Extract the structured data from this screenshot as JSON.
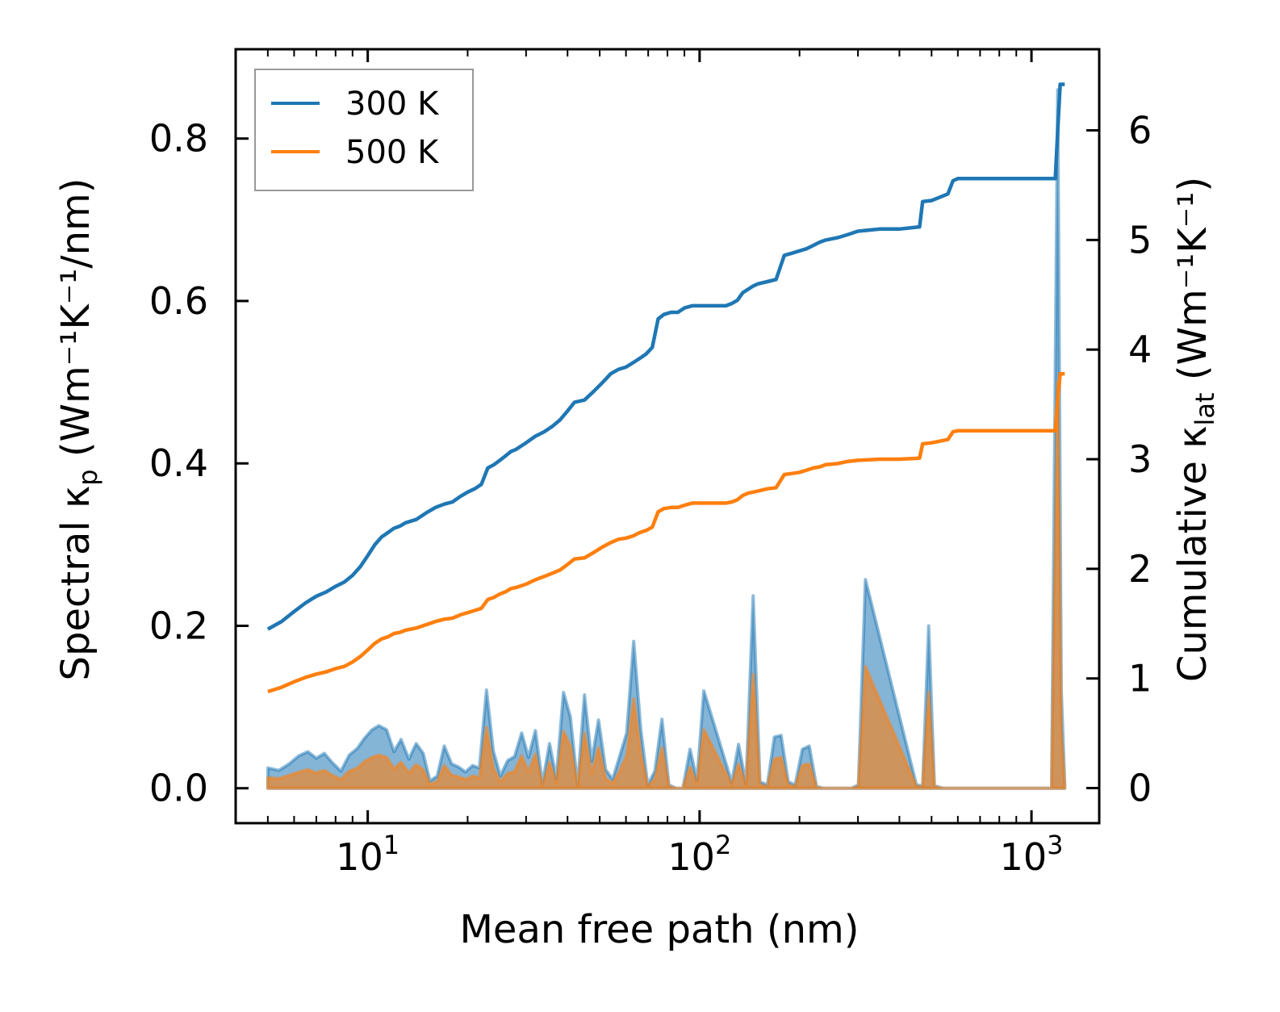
{
  "chart_data": {
    "type": "line",
    "title": "",
    "xlabel": "Mean free path (nm)",
    "xscale": "log",
    "xlim": [
      4.0,
      1600
    ],
    "x_ticks": [
      {
        "base": "10",
        "exp": "1"
      },
      {
        "base": "10",
        "exp": "2"
      },
      {
        "base": "10",
        "exp": "3"
      }
    ],
    "left_axis": {
      "label": {
        "pre": "Spectral κ",
        "sub": "p",
        "post": " (Wm⁻¹K⁻¹/nm)"
      },
      "ylim": [
        -0.043,
        0.91
      ],
      "ticks": [
        "0.0",
        "0.2",
        "0.4",
        "0.6",
        "0.8"
      ]
    },
    "right_axis": {
      "label": {
        "pre": "Cumulative κ",
        "sub": "lat",
        "post": " (Wm⁻¹K⁻¹)"
      },
      "ylim": [
        -0.32,
        6.74
      ],
      "ticks": [
        "0",
        "1",
        "2",
        "3",
        "4",
        "5",
        "6"
      ]
    },
    "legend": {
      "placement": "top-left"
    },
    "spectral_x": [
      5,
      5.4,
      5.8,
      6.2,
      6.6,
      7.0,
      7.4,
      7.8,
      8.3,
      8.8,
      9.3,
      9.8,
      10.3,
      10.8,
      11.4,
      12.0,
      12.6,
      13.3,
      14.0,
      14.7,
      15.4,
      16.2,
      17.0,
      17.9,
      18.8,
      19.7,
      20.7,
      21.7,
      22.8,
      23.9,
      25.1,
      26.4,
      27.7,
      29.1,
      30.5,
      32.0,
      33.6,
      35.3,
      37.0,
      38.9,
      40.8,
      42.9,
      45.0,
      47.3,
      49.6,
      52.1,
      54.7,
      57.4,
      60.3,
      63.3,
      66.5,
      69.8,
      73.3,
      77.0,
      80.8,
      84.9,
      89.1,
      93.6,
      98.2,
      103,
      125,
      131,
      138,
      145,
      152,
      160,
      168,
      176,
      185,
      194,
      204,
      214,
      225,
      236,
      248,
      260,
      273,
      287,
      301,
      316,
      450,
      470,
      490,
      510,
      540,
      570,
      600,
      1150,
      1200,
      1230,
      1260
    ],
    "series": [
      {
        "name": "300 K",
        "color": "#1f77b4",
        "cumulative_x": [
          5,
          5.5,
          6,
          6.5,
          7,
          7.5,
          8,
          8.5,
          9,
          9.5,
          10,
          10.5,
          11,
          11.5,
          12,
          12.5,
          13,
          14,
          15,
          16,
          17,
          18,
          19,
          20,
          21,
          22,
          23,
          24,
          25,
          26,
          27,
          28,
          30,
          32,
          34,
          36,
          38,
          40,
          42,
          45,
          48,
          51,
          54,
          57,
          60,
          63,
          66,
          69,
          72,
          75,
          78,
          82,
          86,
          90,
          95,
          100,
          110,
          120,
          125,
          130,
          135,
          140,
          145,
          150,
          160,
          170,
          180,
          190,
          200,
          210,
          220,
          230,
          240,
          260,
          280,
          300,
          350,
          400,
          460,
          470,
          500,
          520,
          560,
          580,
          600,
          800,
          1000,
          1180,
          1200,
          1220,
          1260
        ],
        "cumulative_y": [
          1.45,
          1.52,
          1.61,
          1.69,
          1.75,
          1.79,
          1.84,
          1.88,
          1.94,
          2.02,
          2.12,
          2.22,
          2.29,
          2.33,
          2.37,
          2.39,
          2.42,
          2.45,
          2.51,
          2.56,
          2.59,
          2.61,
          2.66,
          2.7,
          2.73,
          2.77,
          2.92,
          2.95,
          2.99,
          3.03,
          3.07,
          3.09,
          3.15,
          3.21,
          3.25,
          3.3,
          3.36,
          3.44,
          3.52,
          3.54,
          3.62,
          3.7,
          3.78,
          3.82,
          3.84,
          3.88,
          3.92,
          3.96,
          4.02,
          4.28,
          4.32,
          4.34,
          4.34,
          4.38,
          4.4,
          4.4,
          4.4,
          4.4,
          4.42,
          4.45,
          4.52,
          4.55,
          4.58,
          4.6,
          4.62,
          4.64,
          4.86,
          4.88,
          4.9,
          4.92,
          4.95,
          4.98,
          5.0,
          5.02,
          5.05,
          5.08,
          5.1,
          5.1,
          5.12,
          5.35,
          5.36,
          5.38,
          5.42,
          5.54,
          5.56,
          5.56,
          5.56,
          5.56,
          6.0,
          6.42,
          6.42
        ],
        "spectral_y": [
          0.025,
          0.022,
          0.03,
          0.04,
          0.045,
          0.037,
          0.043,
          0.032,
          0.021,
          0.041,
          0.049,
          0.062,
          0.072,
          0.077,
          0.072,
          0.045,
          0.06,
          0.036,
          0.055,
          0.043,
          0.009,
          0.015,
          0.052,
          0.03,
          0.026,
          0.02,
          0.028,
          0.025,
          0.121,
          0.046,
          0.015,
          0.034,
          0.039,
          0.068,
          0.038,
          0.071,
          0.006,
          0.055,
          0.012,
          0.118,
          0.088,
          0.003,
          0.115,
          0.033,
          0.084,
          0.023,
          0.011,
          0.039,
          0.068,
          0.181,
          0.072,
          0.004,
          0.021,
          0.085,
          0.004,
          0,
          0,
          0.048,
          0.01,
          0.12,
          0.007,
          0.054,
          0.005,
          0.237,
          0.008,
          0.004,
          0.063,
          0.065,
          0.008,
          0.004,
          0.048,
          0.052,
          0.002,
          0,
          0,
          0,
          0,
          0,
          0.004,
          0.257,
          0.004,
          0.003,
          0.2,
          0.003,
          0,
          0,
          0,
          0,
          0.86,
          0.12,
          0.004
        ]
      },
      {
        "name": "500 K",
        "color": "#ff7f0e",
        "cumulative_x": [
          5,
          5.5,
          6,
          6.5,
          7,
          7.5,
          8,
          8.5,
          9,
          9.5,
          10,
          10.5,
          11,
          11.5,
          12,
          12.5,
          13,
          14,
          15,
          16,
          17,
          18,
          19,
          20,
          21,
          22,
          23,
          24,
          25,
          26,
          27,
          28,
          30,
          32,
          34,
          36,
          38,
          40,
          42,
          45,
          48,
          51,
          54,
          57,
          60,
          63,
          66,
          69,
          72,
          75,
          78,
          82,
          86,
          90,
          95,
          100,
          110,
          120,
          125,
          130,
          135,
          140,
          145,
          150,
          160,
          170,
          180,
          190,
          200,
          210,
          220,
          230,
          240,
          260,
          280,
          300,
          350,
          400,
          460,
          470,
          500,
          520,
          560,
          580,
          600,
          800,
          1000,
          1180,
          1200,
          1220,
          1260
        ],
        "cumulative_y": [
          0.88,
          0.92,
          0.97,
          1.01,
          1.04,
          1.06,
          1.09,
          1.11,
          1.15,
          1.2,
          1.26,
          1.32,
          1.36,
          1.38,
          1.41,
          1.42,
          1.44,
          1.46,
          1.49,
          1.52,
          1.54,
          1.55,
          1.58,
          1.6,
          1.62,
          1.64,
          1.72,
          1.74,
          1.77,
          1.79,
          1.82,
          1.83,
          1.86,
          1.9,
          1.93,
          1.96,
          1.99,
          2.04,
          2.09,
          2.1,
          2.15,
          2.2,
          2.24,
          2.27,
          2.28,
          2.3,
          2.33,
          2.35,
          2.38,
          2.52,
          2.55,
          2.56,
          2.56,
          2.58,
          2.6,
          2.6,
          2.6,
          2.6,
          2.61,
          2.63,
          2.67,
          2.69,
          2.7,
          2.71,
          2.73,
          2.74,
          2.86,
          2.87,
          2.88,
          2.9,
          2.92,
          2.93,
          2.95,
          2.96,
          2.98,
          2.99,
          3.0,
          3.0,
          3.01,
          3.14,
          3.15,
          3.16,
          3.18,
          3.25,
          3.26,
          3.26,
          3.26,
          3.26,
          3.55,
          3.78,
          3.78
        ],
        "spectral_y": [
          0.013,
          0.012,
          0.016,
          0.02,
          0.023,
          0.019,
          0.022,
          0.016,
          0.011,
          0.021,
          0.025,
          0.033,
          0.038,
          0.041,
          0.038,
          0.024,
          0.032,
          0.019,
          0.029,
          0.023,
          0.005,
          0.008,
          0.028,
          0.016,
          0.014,
          0.011,
          0.015,
          0.013,
          0.075,
          0.025,
          0.008,
          0.018,
          0.021,
          0.04,
          0.02,
          0.042,
          0.003,
          0.032,
          0.006,
          0.07,
          0.052,
          0.002,
          0.068,
          0.018,
          0.05,
          0.012,
          0.006,
          0.021,
          0.04,
          0.11,
          0.042,
          0.002,
          0.011,
          0.05,
          0.002,
          0,
          0,
          0.026,
          0.005,
          0.072,
          0.004,
          0.03,
          0.003,
          0.14,
          0.004,
          0.002,
          0.036,
          0.038,
          0.004,
          0.002,
          0.028,
          0.03,
          0.001,
          0,
          0,
          0,
          0,
          0,
          0.002,
          0.15,
          0.002,
          0.002,
          0.118,
          0.002,
          0,
          0,
          0,
          0,
          0.5,
          0.07,
          0.002
        ]
      }
    ]
  }
}
